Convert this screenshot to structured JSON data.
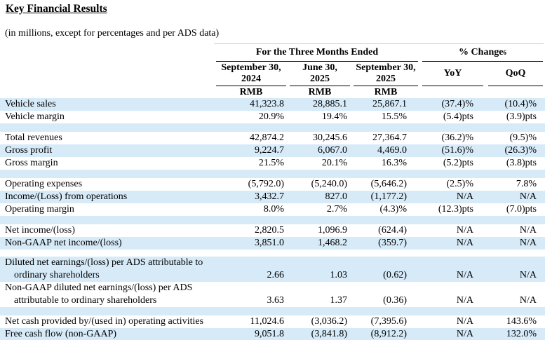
{
  "page": {
    "title": "Key Financial Results",
    "subtitle": "(in millions, except for percentages and per ADS data)"
  },
  "colors": {
    "shaded_row_bg": "#d6eaf8",
    "rule": "#000000",
    "faint_rule": "#c9c9c9",
    "text": "#000000"
  },
  "table": {
    "group_headers": [
      {
        "label": "For the Three Months Ended"
      },
      {
        "label": "% Change",
        "superscript": "6"
      }
    ],
    "columns": [
      {
        "line1": "September 30,",
        "line2": "2024",
        "unit": "RMB"
      },
      {
        "line1": "June 30,",
        "line2": "2025",
        "unit": "RMB"
      },
      {
        "line1": "September 30,",
        "line2": "2025",
        "unit": "RMB"
      },
      {
        "line1": "YoY"
      },
      {
        "line1": "QoQ"
      }
    ],
    "rows": [
      {
        "label": "Vehicle sales",
        "values": [
          "41,323.8",
          "28,885.1",
          "25,867.1",
          "(37.4)%",
          "(10.4)%"
        ],
        "shaded": true
      },
      {
        "label": "Vehicle margin",
        "values": [
          "20.9%",
          "19.4%",
          "15.5%",
          "(5.4)pts",
          "(3.9)pts"
        ],
        "shaded": false
      },
      {
        "type": "spacer",
        "shaded": true
      },
      {
        "label": "Total revenues",
        "values": [
          "42,874.2",
          "30,245.6",
          "27,364.7",
          "(36.2)%",
          "(9.5)%"
        ],
        "shaded": false
      },
      {
        "label": "Gross profit",
        "values": [
          "9,224.7",
          "6,067.0",
          "4,469.0",
          "(51.6)%",
          "(26.3)%"
        ],
        "shaded": true
      },
      {
        "label": "Gross margin",
        "values": [
          "21.5%",
          "20.1%",
          "16.3%",
          "(5.2)pts",
          "(3.8)pts"
        ],
        "shaded": false
      },
      {
        "type": "spacer",
        "shaded": true
      },
      {
        "label": "Operating expenses",
        "values": [
          "(5,792.0)",
          "(5,240.0)",
          "(5,646.2)",
          "(2.5)%",
          "7.8%"
        ],
        "shaded": false
      },
      {
        "label": "Income/(Loss) from operations",
        "values": [
          "3,432.7",
          "827.0",
          "(1,177.2)",
          "N/A",
          "N/A"
        ],
        "shaded": true
      },
      {
        "label": "Operating margin",
        "values": [
          "8.0%",
          "2.7%",
          "(4.3)%",
          "(12.3)pts",
          "(7.0)pts"
        ],
        "shaded": false
      },
      {
        "type": "spacer",
        "shaded": true
      },
      {
        "label": "Net income/(loss)",
        "values": [
          "2,820.5",
          "1,096.9",
          "(624.4)",
          "N/A",
          "N/A"
        ],
        "shaded": false
      },
      {
        "label": "Non-GAAP net income/(loss)",
        "values": [
          "3,851.0",
          "1,468.2",
          "(359.7)",
          "N/A",
          "N/A"
        ],
        "shaded": true
      },
      {
        "type": "spacer",
        "shaded": false,
        "small": true
      },
      {
        "label": "Diluted net earnings/(loss) per ADS attributable to",
        "label2": "ordinary shareholders",
        "values": [
          "2.66",
          "1.03",
          "(0.62)",
          "N/A",
          "N/A"
        ],
        "shaded": true
      },
      {
        "label": "Non-GAAP diluted net earnings/(loss) per ADS",
        "label2": "attributable to ordinary shareholders",
        "values": [
          "3.63",
          "1.37",
          "(0.36)",
          "N/A",
          "N/A"
        ],
        "shaded": false
      },
      {
        "type": "spacer",
        "shaded": true
      },
      {
        "label": "Net cash provided by/(used in) operating activities",
        "values": [
          "11,024.6",
          "(3,036.2)",
          "(7,395.6)",
          "N/A",
          "143.6%"
        ],
        "shaded": false
      },
      {
        "label": "Free cash flow (non-GAAP)",
        "values": [
          "9,051.8",
          "(3,841.8)",
          "(8,912.2)",
          "N/A",
          "132.0%"
        ],
        "shaded": true
      }
    ]
  }
}
